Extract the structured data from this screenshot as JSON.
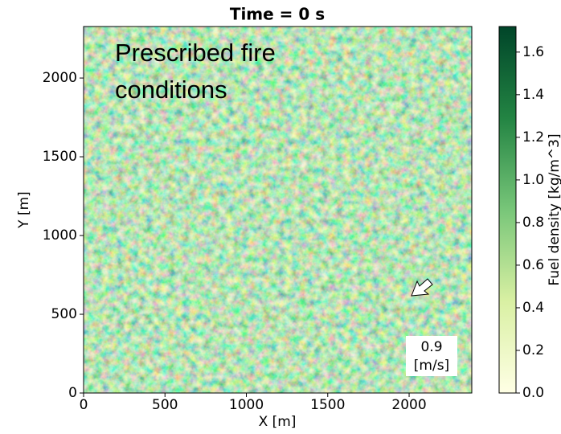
{
  "chart_data": {
    "type": "heatmap",
    "title": "Time = 0 s",
    "xlabel": "X [m]",
    "ylabel": "Y [m]",
    "xlim": [
      0,
      2385
    ],
    "xticks": [
      0,
      500,
      1000,
      1500,
      2000
    ],
    "ylim": [
      0,
      2327
    ],
    "yticks": [
      0,
      500,
      1000,
      1500,
      2000
    ],
    "colorbar_label": "Fuel density [kg/m^3]",
    "clim": [
      0,
      1.72
    ],
    "cticks": [
      {
        "value": 0,
        "label": "0.0"
      },
      0.2,
      0.4,
      0.6,
      0.8,
      {
        "value": 1,
        "label": "1.0"
      },
      1.2,
      1.4,
      1.6
    ],
    "colormap": [
      "#ffffe5",
      "#d9f0a3",
      "#78c679",
      "#238443",
      "#004529"
    ],
    "annotation": [
      "Prescribed fire",
      "conditions"
    ],
    "wind": {
      "speed": 0.9,
      "unit": "[m/s]"
    }
  }
}
